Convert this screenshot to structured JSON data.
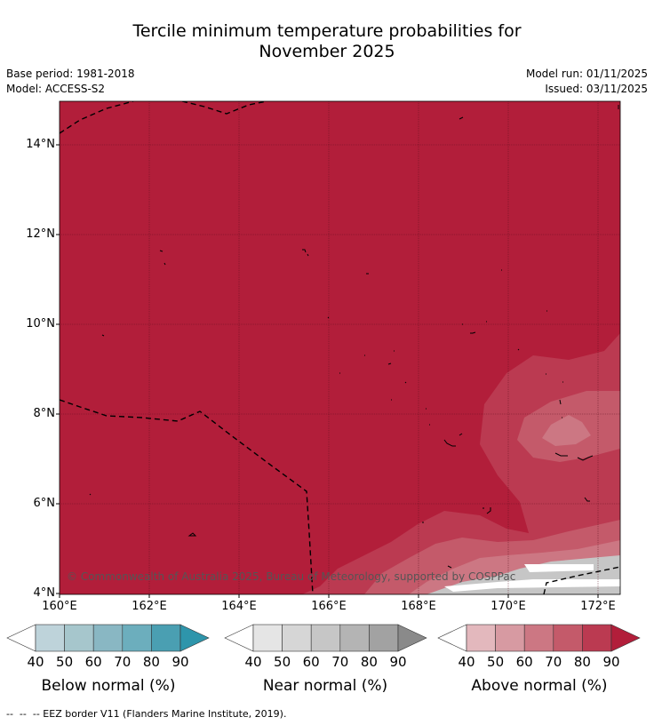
{
  "title_line1": "Tercile minimum temperature probabilities for",
  "title_line2": "November 2025",
  "base_period": "Base period: 1981-2018",
  "model": "Model: ACCESS-S2",
  "model_run": "Model run: 01/11/2025",
  "issued": "Issued: 03/11/2025",
  "y_ticks": [
    "14°N",
    "12°N",
    "10°N",
    "8°N",
    "6°N",
    "4°N"
  ],
  "x_ticks": [
    "160°E",
    "162°E",
    "164°E",
    "166°E",
    "168°E",
    "170°E",
    "172°E"
  ],
  "copyright": "© Commonwealth of Australia 2025, Bureau of Meteorology, supported by COSPPac",
  "colorbars": [
    {
      "title": "Below normal (%)",
      "ticks": [
        "40",
        "50",
        "60",
        "70",
        "80",
        "90"
      ],
      "colors": [
        "#ffffff",
        "#bed3da",
        "#a6c6cc",
        "#89b7c3",
        "#6caebd",
        "#4a9fb2",
        "#2e95ab"
      ]
    },
    {
      "title": "Near normal (%)",
      "ticks": [
        "40",
        "50",
        "60",
        "70",
        "80",
        "90"
      ],
      "colors": [
        "#ffffff",
        "#e5e5e5",
        "#d6d6d6",
        "#c6c6c6",
        "#b4b4b4",
        "#a2a2a2",
        "#8a8a8a"
      ]
    },
    {
      "title": "Above normal (%)",
      "ticks": [
        "40",
        "50",
        "60",
        "70",
        "80",
        "90"
      ],
      "colors": [
        "#ffffff",
        "#e3b8bd",
        "#d79aa2",
        "#cc7783",
        "#c45a6a",
        "#bb3a51",
        "#b21e3a"
      ]
    }
  ],
  "footer": "--  --  -- EEZ border V11 (Flanders Marine Institute, 2019).",
  "colors": {
    "main_fill": "#b21e3a",
    "fill_80": "#bb3a51",
    "fill_70": "#c45a6a",
    "fill_60": "#cc7783",
    "near_fill": "#c6c6c6"
  }
}
